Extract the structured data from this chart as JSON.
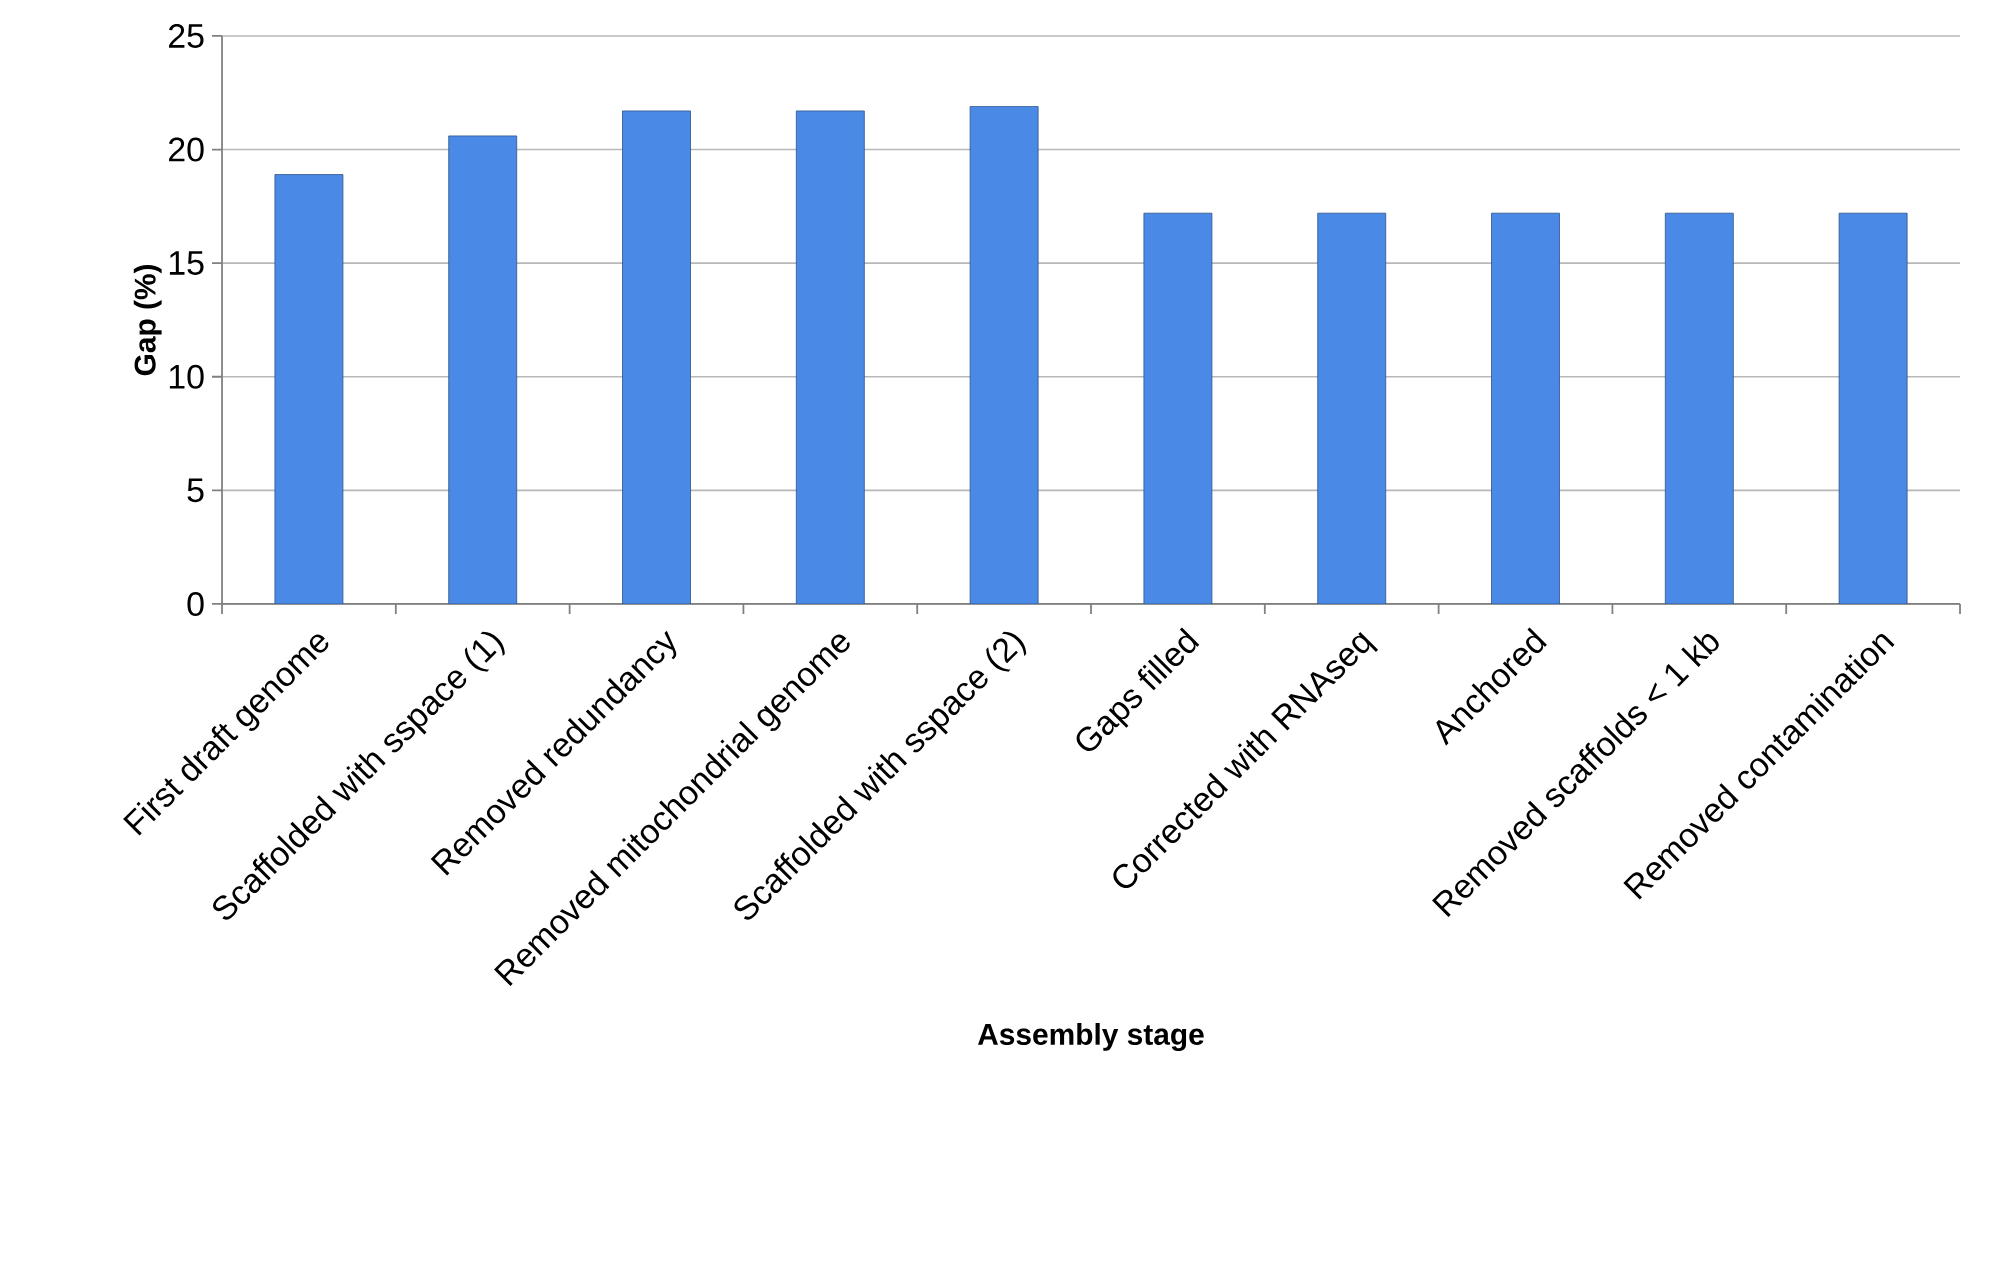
{
  "chart_data": {
    "type": "bar",
    "xlabel": "Assembly stage",
    "ylabel": "Gap (%)",
    "categories": [
      "First draft genome",
      "Scaffolded with sspace (1)",
      "Removed redundancy",
      "Removed mitochondrial genome",
      "Scaffolded with sspace (2)",
      "Gaps filled",
      "Corrected with RNAseq",
      "Anchored",
      "Removed scaffolds < 1 kb",
      "Removed contamination"
    ],
    "values": [
      18.9,
      20.6,
      21.7,
      21.7,
      21.9,
      17.2,
      17.2,
      17.2,
      17.2,
      17.2
    ],
    "color": "#4a8ae6",
    "ylim": [
      0,
      25
    ],
    "yticks": [
      0,
      5,
      10,
      15,
      20,
      25
    ],
    "grid": "y"
  }
}
